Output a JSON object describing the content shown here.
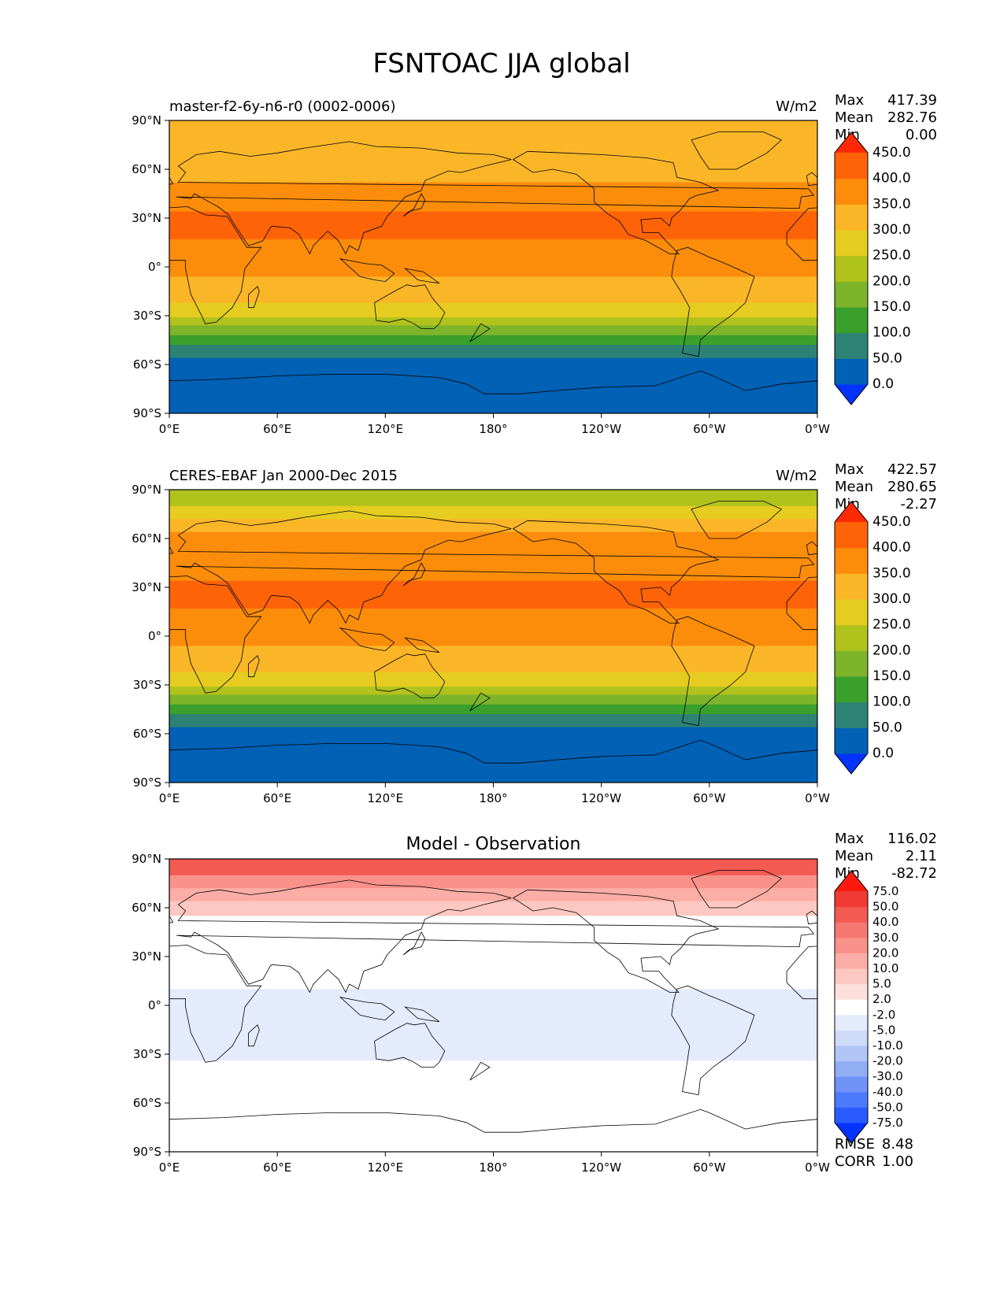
{
  "title": "FSNTOAC JJA global",
  "lat_ticks": [
    "90°N",
    "60°N",
    "30°N",
    "0°",
    "30°S",
    "60°S",
    "90°S"
  ],
  "lon_ticks": [
    "0°E",
    "60°E",
    "120°E",
    "180°",
    "120°W",
    "60°W",
    "0°W"
  ],
  "stat_labels": {
    "max": "Max",
    "mean": "Mean",
    "min": "Min",
    "rmse": "RMSE",
    "corr": "CORR"
  },
  "panels": [
    {
      "id": "model",
      "title": "",
      "left_title": "master-f2-6y-n6-r0 (0002-0006)",
      "units": "W/m2",
      "stats": {
        "max": "417.39",
        "mean": "282.76",
        "min": "0.00"
      },
      "colorbar": {
        "levels": [
          "0.0",
          "50.0",
          "100.0",
          "150.0",
          "200.0",
          "250.0",
          "300.0",
          "350.0",
          "400.0",
          "450.0"
        ],
        "colors": [
          "#0433ff",
          "#0061b5",
          "#2c8274",
          "#3aa02c",
          "#7db42a",
          "#b0c21c",
          "#e6cc20",
          "#fbb628",
          "#fb8d0b",
          "#ff6308",
          "#ff2a05"
        ]
      }
    },
    {
      "id": "observation",
      "title": "",
      "left_title": "CERES-EBAF Jan 2000-Dec 2015",
      "units": "W/m2",
      "stats": {
        "max": "422.57",
        "mean": "280.65",
        "min": "-2.27"
      },
      "colorbar": {
        "levels": [
          "0.0",
          "50.0",
          "100.0",
          "150.0",
          "200.0",
          "250.0",
          "300.0",
          "350.0",
          "400.0",
          "450.0"
        ],
        "colors": [
          "#0433ff",
          "#0061b5",
          "#2c8274",
          "#3aa02c",
          "#7db42a",
          "#b0c21c",
          "#e6cc20",
          "#fbb628",
          "#fb8d0b",
          "#ff6308",
          "#ff2a05"
        ]
      }
    },
    {
      "id": "difference",
      "title": "Model - Observation",
      "left_title": "",
      "units": "",
      "stats": {
        "max": "116.02",
        "mean": "2.11",
        "min": "-82.72",
        "rmse": "8.48",
        "corr": "1.00"
      },
      "colorbar": {
        "levels": [
          "-75.0",
          "-50.0",
          "-40.0",
          "-30.0",
          "-20.0",
          "-10.0",
          "-5.0",
          "-2.0",
          "2.0",
          "5.0",
          "10.0",
          "20.0",
          "30.0",
          "40.0",
          "50.0",
          "75.0"
        ],
        "colors": [
          "#0433ff",
          "#2a5bff",
          "#4d7afc",
          "#6f93f7",
          "#91aef4",
          "#b1c6f6",
          "#cfdcf9",
          "#e4ebfb",
          "#ffffff",
          "#fde0dc",
          "#fcc8c1",
          "#fbaea5",
          "#f8928a",
          "#f57870",
          "#f25a52",
          "#ef3b33",
          "#ff1a0d"
        ]
      }
    }
  ],
  "chart_data": [
    {
      "type": "heatmap",
      "title": "",
      "left_title": "master-f2-6y-n6-r0 (0002-0006)",
      "units": "W/m2",
      "projection": "PlateCarree, central longitude 180",
      "xlim": [
        0,
        360
      ],
      "ylim": [
        -90,
        90
      ],
      "x_ticks": [
        "0°E",
        "60°E",
        "120°E",
        "180°",
        "120°W",
        "60°W",
        "0°W"
      ],
      "y_ticks": [
        "90°N",
        "60°N",
        "30°N",
        "0°",
        "30°S",
        "60°S",
        "90°S"
      ],
      "zonal_bands": [
        {
          "lat_min": 70,
          "lat_max": 90,
          "value": 300
        },
        {
          "lat_min": 62,
          "lat_max": 70,
          "value": 325
        },
        {
          "lat_min": 52,
          "lat_max": 62,
          "value": 340
        },
        {
          "lat_min": 42,
          "lat_max": 52,
          "value": 370
        },
        {
          "lat_min": 34,
          "lat_max": 42,
          "value": 390
        },
        {
          "lat_min": 17,
          "lat_max": 34,
          "value": 410
        },
        {
          "lat_min": 6,
          "lat_max": 17,
          "value": 380
        },
        {
          "lat_min": -6,
          "lat_max": 6,
          "value": 360
        },
        {
          "lat_min": -14,
          "lat_max": -6,
          "value": 330
        },
        {
          "lat_min": -22,
          "lat_max": -14,
          "value": 310
        },
        {
          "lat_min": -26,
          "lat_max": -22,
          "value": 280
        },
        {
          "lat_min": -31,
          "lat_max": -26,
          "value": 260
        },
        {
          "lat_min": -36,
          "lat_max": -31,
          "value": 220
        },
        {
          "lat_min": -42,
          "lat_max": -36,
          "value": 180
        },
        {
          "lat_min": -48,
          "lat_max": -42,
          "value": 140
        },
        {
          "lat_min": -56,
          "lat_max": -48,
          "value": 90
        },
        {
          "lat_min": -83,
          "lat_max": -56,
          "value": 40
        },
        {
          "lat_min": -90,
          "lat_max": -83,
          "value": 0
        }
      ],
      "max": 417.39,
      "mean": 282.76,
      "min": 0.0
    },
    {
      "type": "heatmap",
      "title": "",
      "left_title": "CERES-EBAF Jan 2000-Dec 2015",
      "units": "W/m2",
      "projection": "PlateCarree, central longitude 180",
      "xlim": [
        0,
        360
      ],
      "ylim": [
        -90,
        90
      ],
      "x_ticks": [
        "0°E",
        "60°E",
        "120°E",
        "180°",
        "120°W",
        "60°W",
        "0°W"
      ],
      "y_ticks": [
        "90°N",
        "60°N",
        "30°N",
        "0°",
        "30°S",
        "60°S",
        "90°S"
      ],
      "zonal_bands": [
        {
          "lat_min": 80,
          "lat_max": 90,
          "value": 230
        },
        {
          "lat_min": 72,
          "lat_max": 80,
          "value": 270
        },
        {
          "lat_min": 64,
          "lat_max": 72,
          "value": 325
        },
        {
          "lat_min": 52,
          "lat_max": 64,
          "value": 350
        },
        {
          "lat_min": 42,
          "lat_max": 52,
          "value": 370
        },
        {
          "lat_min": 34,
          "lat_max": 42,
          "value": 390
        },
        {
          "lat_min": 17,
          "lat_max": 34,
          "value": 410
        },
        {
          "lat_min": 6,
          "lat_max": 17,
          "value": 375
        },
        {
          "lat_min": -6,
          "lat_max": 6,
          "value": 360
        },
        {
          "lat_min": -14,
          "lat_max": -6,
          "value": 330
        },
        {
          "lat_min": -22,
          "lat_max": -14,
          "value": 310
        },
        {
          "lat_min": -26,
          "lat_max": -22,
          "value": 280
        },
        {
          "lat_min": -31,
          "lat_max": -26,
          "value": 260
        },
        {
          "lat_min": -36,
          "lat_max": -31,
          "value": 220
        },
        {
          "lat_min": -42,
          "lat_max": -36,
          "value": 180
        },
        {
          "lat_min": -48,
          "lat_max": -42,
          "value": 140
        },
        {
          "lat_min": -56,
          "lat_max": -48,
          "value": 90
        },
        {
          "lat_min": -66,
          "lat_max": -56,
          "value": 40
        },
        {
          "lat_min": -76,
          "lat_max": -66,
          "value": 30
        },
        {
          "lat_min": -80,
          "lat_max": -76,
          "value": 10
        },
        {
          "lat_min": -84,
          "lat_max": -80,
          "value": 40
        },
        {
          "lat_min": -90,
          "lat_max": -84,
          "value": 0
        }
      ],
      "max": 422.57,
      "mean": 280.65,
      "min": -2.27
    },
    {
      "type": "heatmap",
      "title": "Model - Observation",
      "units": "",
      "projection": "PlateCarree, central longitude 180",
      "xlim": [
        0,
        360
      ],
      "ylim": [
        -90,
        90
      ],
      "x_ticks": [
        "0°E",
        "60°E",
        "120°E",
        "180°",
        "120°W",
        "60°W",
        "0°W"
      ],
      "y_ticks": [
        "90°N",
        "60°N",
        "30°N",
        "0°",
        "30°S",
        "60°S",
        "90°S"
      ],
      "zonal_bands": [
        {
          "lat_min": 80,
          "lat_max": 90,
          "value": 40
        },
        {
          "lat_min": 72,
          "lat_max": 80,
          "value": 25
        },
        {
          "lat_min": 64,
          "lat_max": 72,
          "value": 12
        },
        {
          "lat_min": 55,
          "lat_max": 64,
          "value": 6
        },
        {
          "lat_min": 40,
          "lat_max": 55,
          "value": 0
        },
        {
          "lat_min": 10,
          "lat_max": 40,
          "value": 0
        },
        {
          "lat_min": -5,
          "lat_max": 10,
          "value": -3
        },
        {
          "lat_min": -20,
          "lat_max": -5,
          "value": -4
        },
        {
          "lat_min": -34,
          "lat_max": -20,
          "value": -3
        },
        {
          "lat_min": -90,
          "lat_max": -34,
          "value": 0
        }
      ],
      "max": 116.02,
      "mean": 2.11,
      "min": -82.72,
      "rmse": 8.48,
      "corr": 1.0
    }
  ]
}
